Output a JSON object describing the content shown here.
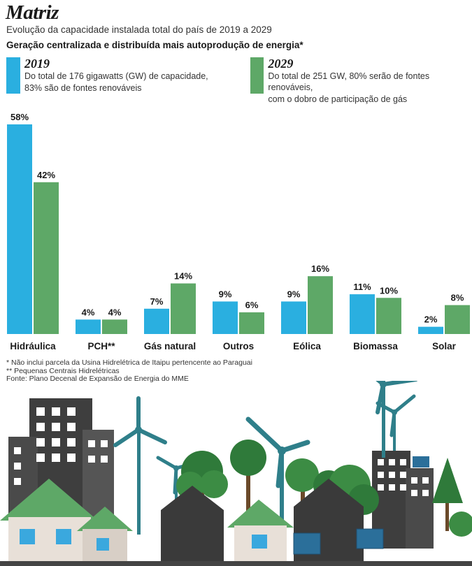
{
  "title": "Matriz",
  "subtitle": "Evolução da capacidade instalada total do país de 2019 a 2029",
  "section_title": "Geração centralizada e distribuída mais autoprodução de energia*",
  "legend": [
    {
      "year": "2019",
      "text1": "Do total de 176 gigawatts (GW) de capacidade,",
      "text2": "83% são de fontes renováveis",
      "color": "#2aafe0"
    },
    {
      "year": "2029",
      "text1": "Do total de 251 GW, 80% serão de fontes renováveis,",
      "text2": "com o dobro de participação de gás",
      "color": "#5ea867"
    }
  ],
  "chart_data": {
    "type": "bar",
    "categories": [
      "Hidráulica",
      "PCH**",
      "Gás natural",
      "Outros",
      "Eólica",
      "Biomassa",
      "Solar"
    ],
    "series": [
      {
        "name": "2019",
        "color": "#2aafe0",
        "values": [
          58,
          4,
          7,
          9,
          9,
          11,
          2
        ],
        "labels": [
          "58%",
          "4%",
          "7%",
          "9%",
          "9%",
          "11%",
          "2%"
        ]
      },
      {
        "name": "2029",
        "color": "#5ea867",
        "values": [
          42,
          4,
          14,
          6,
          16,
          10,
          8
        ],
        "labels": [
          "42%",
          "4%",
          "14%",
          "6%",
          "16%",
          "10%",
          "8%"
        ]
      }
    ],
    "ylim": [
      0,
      58
    ],
    "grid": false
  },
  "notes": [
    "* Não inclui parcela da Usina Hidrelétrica de Itaipu pertencente ao Paraguai",
    "** Pequenas Centrais Hidrelétricas",
    "Fonte: Plano Decenal de Expansão de Energia do MME"
  ]
}
